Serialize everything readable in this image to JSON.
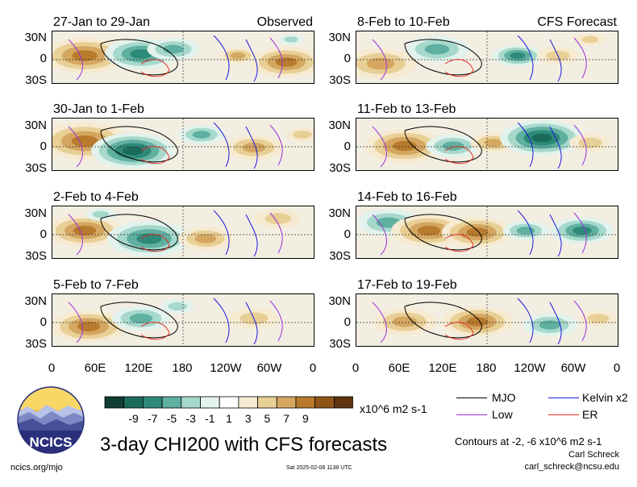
{
  "panels": [
    {
      "id": "p1",
      "title": "27-Jan to 29-Jan",
      "label": "Observed"
    },
    {
      "id": "p2",
      "title": "30-Jan to 1-Feb",
      "label": ""
    },
    {
      "id": "p3",
      "title": "2-Feb to 4-Feb",
      "label": ""
    },
    {
      "id": "p4",
      "title": "5-Feb to 7-Feb",
      "label": ""
    },
    {
      "id": "p5",
      "title": "8-Feb to 10-Feb",
      "label": "CFS Forecast"
    },
    {
      "id": "p6",
      "title": "11-Feb to 13-Feb",
      "label": ""
    },
    {
      "id": "p7",
      "title": "14-Feb to 16-Feb",
      "label": ""
    },
    {
      "id": "p8",
      "title": "17-Feb to 19-Feb",
      "label": ""
    }
  ],
  "lat_labels": [
    "30N",
    "0",
    "30S"
  ],
  "lon_labels": [
    "0",
    "60E",
    "120E",
    "180",
    "120W",
    "60W",
    "0"
  ],
  "colorbar": {
    "ticks": [
      "-9",
      "-7",
      "-5",
      "-3",
      "-1",
      "1",
      "3",
      "5",
      "7",
      "9"
    ],
    "colors": [
      "#0f3d33",
      "#1b6b5b",
      "#2e8a78",
      "#5fb0a0",
      "#a6d8cc",
      "#e2f2ec",
      "#ffffff",
      "#f6ead0",
      "#e8cf95",
      "#d4a660",
      "#b87a2c",
      "#8e5418",
      "#5e3510"
    ],
    "units": "x10^6 m2 s-1"
  },
  "legend": {
    "mjo": "MJO",
    "kelvin": "Kelvin x2",
    "low": "Low",
    "er": "ER",
    "colors": {
      "mjo": "#000000",
      "kelvin": "#1a1adc",
      "low": "#9b30d9",
      "er": "#e0302a"
    }
  },
  "main_title": "3-day CHI200 with CFS forecasts",
  "contours_note": "Contours at -2, -6 x10^6 m2 s-1",
  "author": "Carl Schreck",
  "email": "carl_schreck@ncsu.edu",
  "site": "ncics.org/mjo",
  "timestamp": "Sat 2025-02-08 1138 UTC",
  "logo_text": "NCICS"
}
